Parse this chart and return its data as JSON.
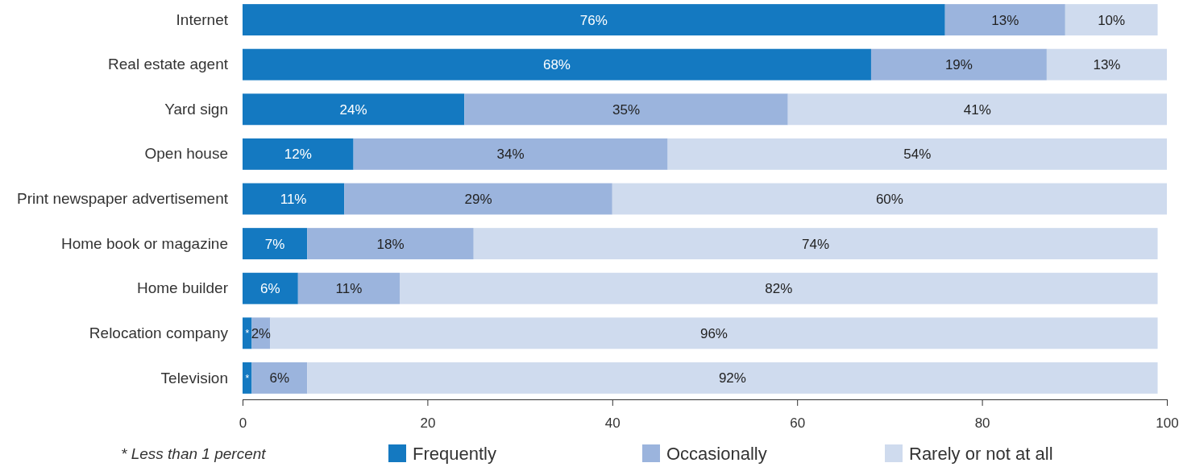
{
  "chart_data": {
    "type": "bar",
    "orientation": "horizontal",
    "stacked": true,
    "categories": [
      "Internet",
      "Real estate agent",
      "Yard sign",
      "Open house",
      "Print newspaper advertisement",
      "Home book or magazine",
      "Home builder",
      "Relocation company",
      "Television"
    ],
    "series": [
      {
        "name": "Frequently",
        "color": "#1479c1",
        "values": [
          76,
          68,
          24,
          12,
          11,
          7,
          6,
          1,
          1
        ],
        "value_labels": [
          "76%",
          "68%",
          "24%",
          "12%",
          "11%",
          "7%",
          "6%",
          "*",
          "*"
        ]
      },
      {
        "name": "Occasionally",
        "color": "#9bb4dd",
        "values": [
          13,
          19,
          35,
          34,
          29,
          18,
          11,
          2,
          6
        ],
        "value_labels": [
          "13%",
          "19%",
          "35%",
          "34%",
          "29%",
          "18%",
          "11%",
          "2%",
          "6%"
        ]
      },
      {
        "name": "Rarely or not at all",
        "color": "#cfdbee",
        "values": [
          10,
          13,
          41,
          54,
          60,
          74,
          82,
          96,
          92
        ],
        "value_labels": [
          "10%",
          "13%",
          "41%",
          "54%",
          "60%",
          "74%",
          "82%",
          "96%",
          "92%"
        ]
      }
    ],
    "xlim": [
      0,
      100
    ],
    "xticks": [
      0,
      20,
      40,
      60,
      80,
      100
    ],
    "grid": false,
    "legend": "bottom",
    "annotations": [
      "* Less than 1 percent"
    ]
  }
}
